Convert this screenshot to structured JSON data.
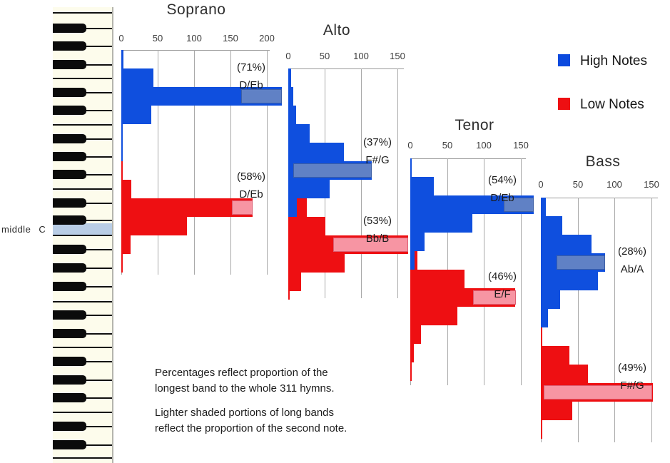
{
  "keyboard": {
    "middle_c_label": "middle C"
  },
  "legend": {
    "items": [
      {
        "label": "High Notes",
        "color": "#0c4ade"
      },
      {
        "label": "Low Notes",
        "color": "#ee0f12"
      }
    ]
  },
  "notes": {
    "paragraphs": [
      [
        "Percentages reflect proportion of the",
        "longest band to the whole 311 hymns."
      ],
      [
        "Lighter shaded portions of long bands",
        "reflect the proportion of the second note."
      ]
    ]
  },
  "colors": {
    "high": "#0f4fde",
    "high_light": "#6081c5",
    "high_light_border": "#3d5fa5",
    "low": "#ee0f12",
    "low_light": "#f795a3",
    "low_light_border": "#dc5e72",
    "middle_c_highlight": "#b9cde5",
    "gridline": "#a9a9a9",
    "axis_line": "#999999"
  },
  "chart_data": [
    {
      "type": "bar",
      "orientation": "horizontal",
      "title": "Soprano",
      "x_axis": {
        "ticks": [
          0,
          50,
          100,
          150,
          200
        ]
      },
      "series": [
        {
          "name": "High Notes",
          "color_key": "high",
          "values": [
            3,
            44,
            221,
            41,
            2,
            2
          ]
        },
        {
          "name": "Low Notes",
          "color_key": "low",
          "values": [
            2,
            14,
            180,
            90,
            13,
            2
          ]
        }
      ],
      "bands": [
        {
          "series": "high",
          "row": 2,
          "pct": "(71%)",
          "label": "D/Eb",
          "total": 221,
          "first_note_count": 165
        },
        {
          "series": "low",
          "row": 2,
          "pct": "(58%)",
          "label": "D/Eb",
          "total": 180,
          "first_note_count": 152
        }
      ]
    },
    {
      "type": "bar",
      "orientation": "horizontal",
      "title": "Alto",
      "x_axis": {
        "ticks": [
          0,
          50,
          100,
          150
        ]
      },
      "series": [
        {
          "name": "High Notes",
          "color_key": "high",
          "values": [
            4,
            7,
            11,
            29,
            76,
            115,
            57,
            12
          ]
        },
        {
          "name": "Low Notes",
          "color_key": "low",
          "values": [
            25,
            51,
            165,
            77,
            18,
            2
          ]
        }
      ],
      "bands": [
        {
          "series": "high",
          "row": 5,
          "pct": "(37%)",
          "label": "F#/G",
          "total": 115,
          "first_note_count": 7
        },
        {
          "series": "low",
          "row": 2,
          "pct": "(53%)",
          "label": "Bb/B",
          "total": 165,
          "first_note_count": 62
        }
      ]
    },
    {
      "type": "bar",
      "orientation": "horizontal",
      "title": "Tenor",
      "x_axis": {
        "ticks": [
          0,
          50,
          100,
          150
        ]
      },
      "series": [
        {
          "name": "High Notes",
          "color_key": "high",
          "values": [
            2,
            32,
            168,
            84,
            19,
            6
          ]
        },
        {
          "name": "Low Notes",
          "color_key": "low",
          "values": [
            10,
            74,
            143,
            64,
            15,
            5,
            2
          ]
        }
      ],
      "bands": [
        {
          "series": "high",
          "row": 2,
          "pct": "(54%)",
          "label": "D/Eb",
          "total": 168,
          "first_note_count": 127
        },
        {
          "series": "low",
          "row": 2,
          "pct": "(46%)",
          "label": "E/F",
          "total": 143,
          "first_note_count": 85
        }
      ]
    },
    {
      "type": "bar",
      "orientation": "horizontal",
      "title": "Bass",
      "x_axis": {
        "ticks": [
          0,
          50,
          100,
          150
        ]
      },
      "series": [
        {
          "name": "High Notes",
          "color_key": "high",
          "values": [
            7,
            29,
            69,
            87,
            78,
            26,
            10
          ]
        },
        {
          "name": "Low Notes",
          "color_key": "low",
          "values": [
            2,
            39,
            64,
            152,
            43,
            2
          ]
        }
      ],
      "bands": [
        {
          "series": "high",
          "row": 3,
          "pct": "(28%)",
          "label": "Ab/A",
          "total": 87,
          "first_note_count": 21
        },
        {
          "series": "low",
          "row": 3,
          "pct": "(49%)",
          "label": "F#/G",
          "total": 152,
          "first_note_count": 4
        }
      ]
    }
  ]
}
